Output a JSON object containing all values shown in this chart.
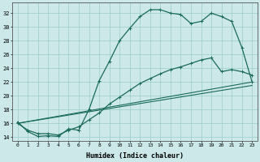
{
  "xlabel": "Humidex (Indice chaleur)",
  "background_color": "#cce8e8",
  "grid_color": "#99cccc",
  "line_color": "#1a6b5a",
  "curve1_x": [
    0,
    1,
    2,
    3,
    4,
    5,
    6,
    7,
    8,
    9,
    10,
    11,
    12,
    13,
    14,
    15,
    16,
    17,
    18,
    19,
    20,
    21,
    22,
    23
  ],
  "curve1_y": [
    16.2,
    14.8,
    14.1,
    14.2,
    14.1,
    15.2,
    15.0,
    18.0,
    22.2,
    25.0,
    28.0,
    29.8,
    31.5,
    32.5,
    32.5,
    32.0,
    31.8,
    30.5,
    30.8,
    32.0,
    31.5,
    30.8,
    27.0,
    22.0
  ],
  "curve2_x": [
    0,
    1,
    2,
    3,
    4,
    5,
    6,
    7,
    8,
    9,
    10,
    11,
    12,
    13,
    14,
    15,
    16,
    17,
    18,
    19,
    20,
    21,
    22,
    23
  ],
  "curve2_y": [
    16.0,
    15.0,
    14.5,
    14.5,
    14.3,
    15.0,
    15.5,
    16.5,
    17.5,
    18.8,
    19.8,
    20.8,
    21.8,
    22.5,
    23.2,
    23.8,
    24.2,
    24.7,
    25.2,
    25.5,
    23.5,
    23.8,
    23.5,
    23.0
  ],
  "curve3_x": [
    0,
    23
  ],
  "curve3_y": [
    16.0,
    22.0
  ],
  "curve4_x": [
    0,
    23
  ],
  "curve4_y": [
    16.0,
    21.5
  ],
  "yticks": [
    14,
    16,
    18,
    20,
    22,
    24,
    26,
    28,
    30,
    32
  ],
  "xticks": [
    0,
    1,
    2,
    3,
    4,
    5,
    6,
    7,
    8,
    9,
    10,
    11,
    12,
    13,
    14,
    15,
    16,
    17,
    18,
    19,
    20,
    21,
    22,
    23
  ],
  "xlim": [
    -0.5,
    23.5
  ],
  "ylim": [
    13.5,
    33.5
  ]
}
